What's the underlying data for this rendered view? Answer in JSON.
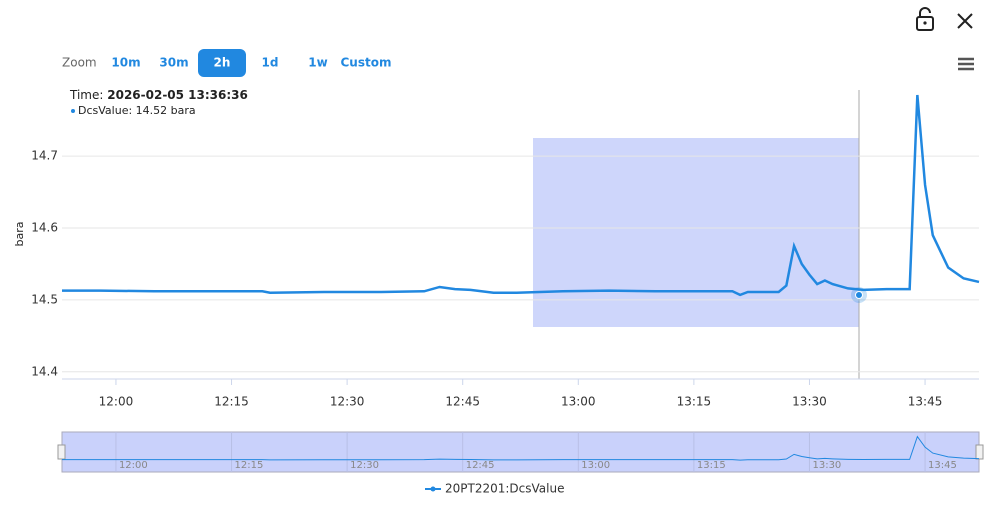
{
  "zoom": {
    "label": "Zoom",
    "buttons": [
      "10m",
      "30m",
      "2h",
      "1d",
      "1w",
      "Custom"
    ],
    "active": 2
  },
  "tooltip": {
    "time_label": "Time:",
    "time": "2026-02-05 13:36:36",
    "value_text": "DcsValue: 14.52 bara"
  },
  "chart_data": {
    "type": "line",
    "y_label": "bara",
    "grid": true,
    "x": [
      "11:53",
      "11:58",
      "12:05",
      "12:12",
      "12:19",
      "12:20",
      "12:27",
      "12:34",
      "12:40",
      "12:42",
      "12:44",
      "12:46",
      "12:49",
      "12:52",
      "12:58",
      "13:04",
      "13:10",
      "13:16",
      "13:20",
      "13:21",
      "13:22",
      "13:26",
      "13:27",
      "13:28",
      "13:29",
      "13:30",
      "13:31",
      "13:32",
      "13:33",
      "13:35",
      "13:37",
      "13:40",
      "13:43",
      "13:44",
      "13:45",
      "13:46",
      "13:48",
      "13:50",
      "13:52"
    ],
    "series": [
      {
        "name": "20PT2201:DcsValue",
        "color": "#2188e0",
        "values": [
          14.513,
          14.513,
          14.512,
          14.512,
          14.512,
          14.51,
          14.511,
          14.511,
          14.512,
          14.518,
          14.515,
          14.514,
          14.51,
          14.51,
          14.512,
          14.513,
          14.512,
          14.512,
          14.512,
          14.507,
          14.511,
          14.511,
          14.52,
          14.575,
          14.55,
          14.535,
          14.522,
          14.527,
          14.522,
          14.516,
          14.514,
          14.515,
          14.515,
          14.785,
          14.66,
          14.59,
          14.545,
          14.53,
          14.525
        ]
      }
    ],
    "xlim": [
      "11:53",
      "13:52"
    ],
    "xticks": [
      "12:00",
      "12:15",
      "12:30",
      "12:45",
      "13:00",
      "13:15",
      "13:30",
      "13:45"
    ],
    "ylim": [
      14.39,
      14.792
    ],
    "yticks": [
      14.4,
      14.5,
      14.6,
      14.7
    ]
  }
}
